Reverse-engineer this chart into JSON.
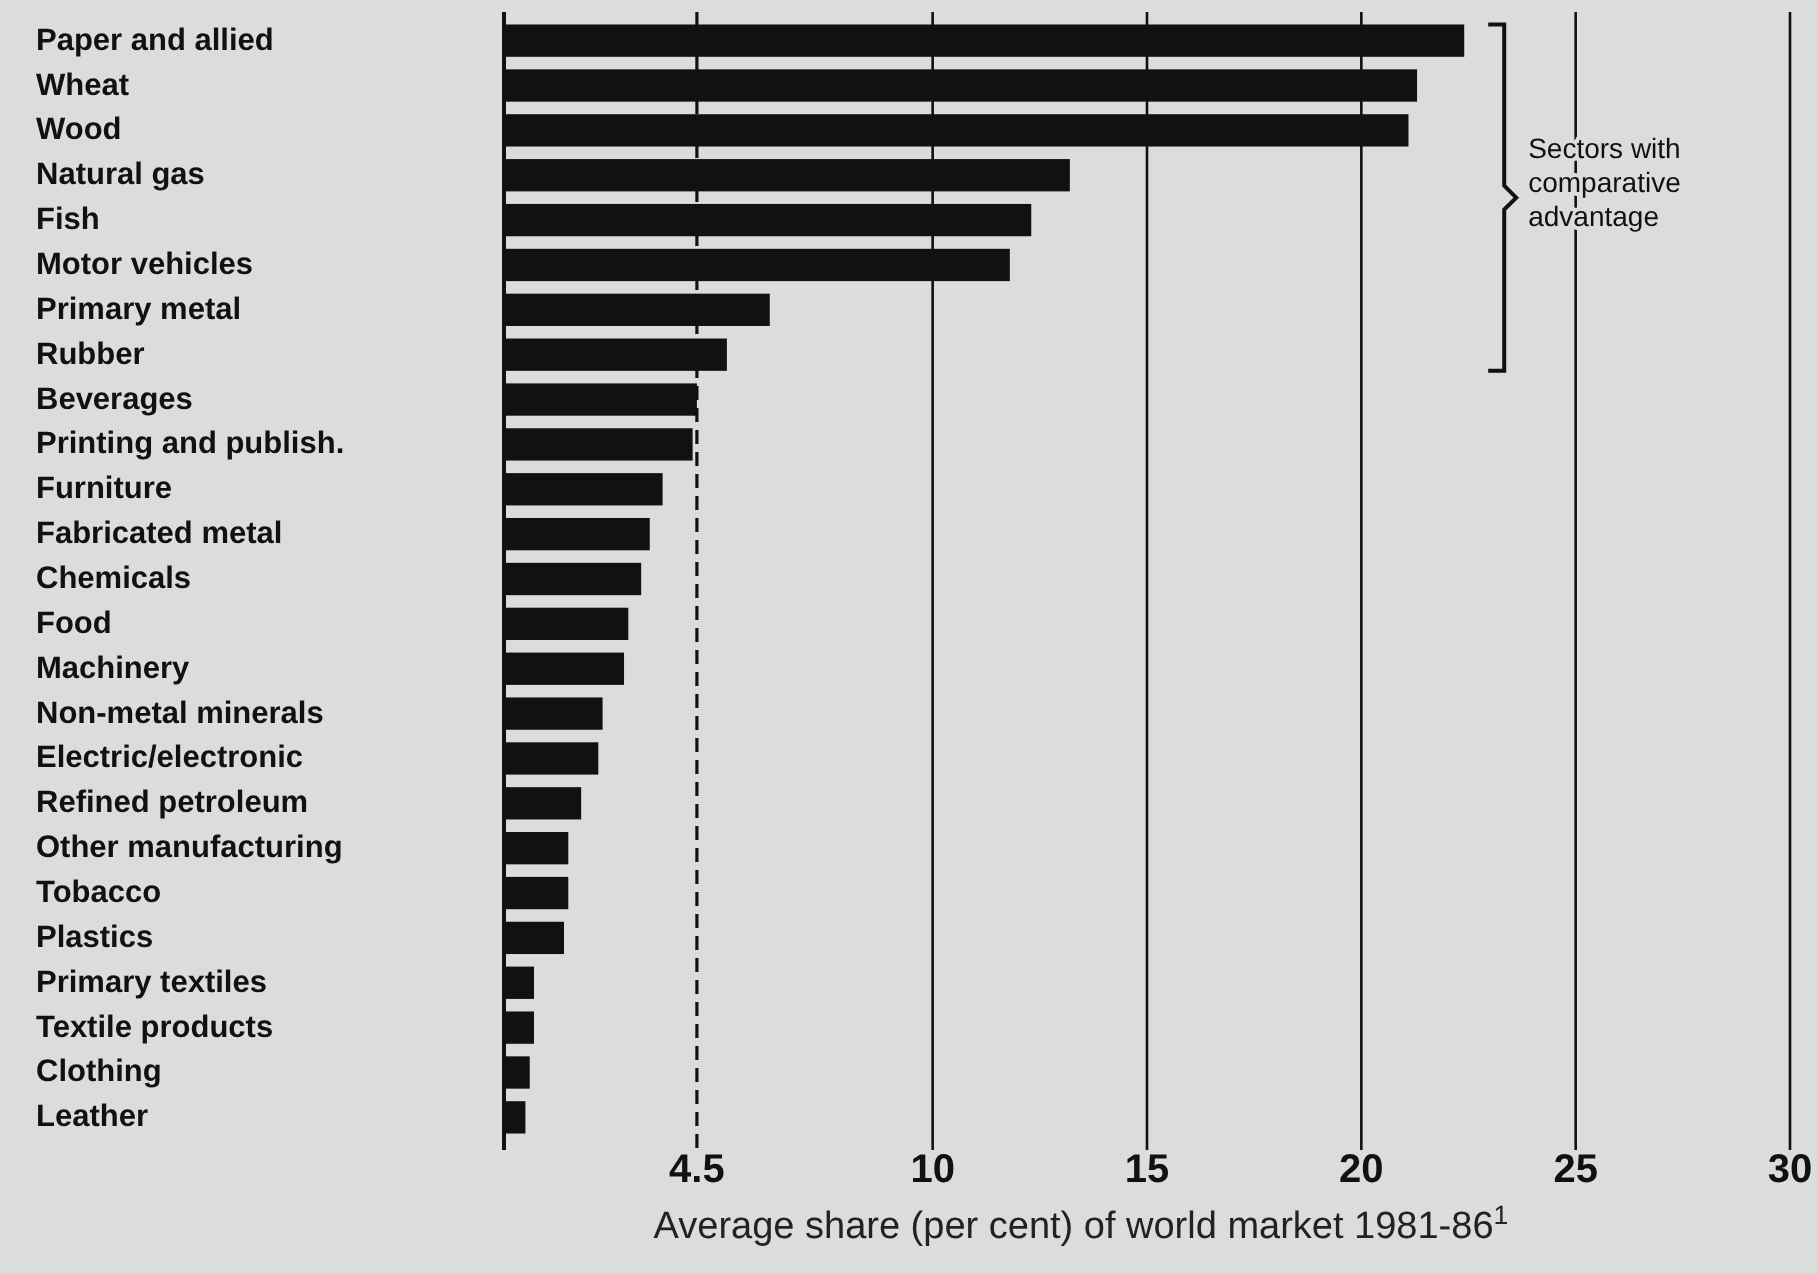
{
  "chart_data": {
    "type": "bar",
    "orientation": "horizontal",
    "categories": [
      "Paper and allied",
      "Wheat",
      "Wood",
      "Natural gas",
      "Fish",
      "Motor vehicles",
      "Primary metal",
      "Rubber",
      "Beverages",
      "Printing and publish.",
      "Furniture",
      "Fabricated metal",
      "Chemicals",
      "Food",
      "Machinery",
      "Non-metal minerals",
      "Electric/electronic",
      "Refined petroleum",
      "Other manufacturing",
      "Tobacco",
      "Plastics",
      "Primary textiles",
      "Textile products",
      "Clothing",
      "Leather"
    ],
    "values": [
      22.4,
      21.3,
      21.1,
      13.2,
      12.3,
      11.8,
      6.2,
      5.2,
      4.5,
      4.4,
      3.7,
      3.4,
      3.2,
      2.9,
      2.8,
      2.3,
      2.2,
      1.8,
      1.5,
      1.5,
      1.4,
      0.7,
      0.7,
      0.6,
      0.5
    ],
    "color": "#111111",
    "xlim": [
      0,
      30
    ],
    "xticks": [
      4.5,
      10,
      15,
      20,
      25,
      30
    ],
    "grid": "x",
    "ref_lines": [
      {
        "axis": "x",
        "value": 4.5,
        "line_style": "dashed"
      }
    ],
    "xlabel": "Average share (per cent) of world market 1981-86$^{1}$",
    "annotations": [
      "Sectors with comparative advantage"
    ]
  }
}
